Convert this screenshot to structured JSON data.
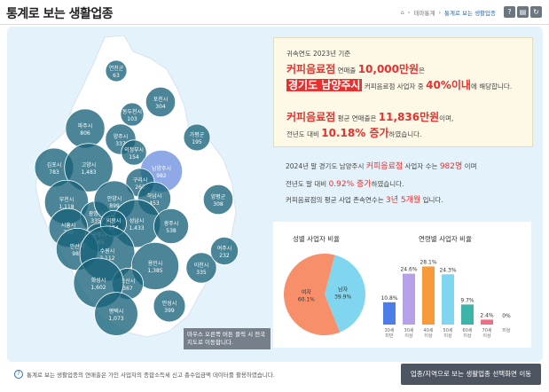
{
  "header": {
    "title": "통계로 보는 생활업종",
    "breadcrumb": [
      "테마통계",
      "통계로 보는 생활업종"
    ],
    "tools": [
      "?",
      "print",
      "refresh"
    ]
  },
  "map": {
    "hint": "마우스 오른쪽 버튼 클릭 시 전국 지도로 이동합니다.",
    "regions": [
      {
        "name": "연천군",
        "value": "63"
      },
      {
        "name": "포천시",
        "value": "304"
      },
      {
        "name": "동두천시",
        "value": "103"
      },
      {
        "name": "파주시",
        "value": "806"
      },
      {
        "name": "양주시",
        "value": "337"
      },
      {
        "name": "의정부시",
        "value": "154"
      },
      {
        "name": "가평군",
        "value": "195"
      },
      {
        "name": "김포시",
        "value": "783"
      },
      {
        "name": "고양시",
        "value": "1,483"
      },
      {
        "name": "남양주시",
        "value": "982"
      },
      {
        "name": "구리시",
        "value": "263"
      },
      {
        "name": "하남시",
        "value": "453"
      },
      {
        "name": "부천시",
        "value": "1,118"
      },
      {
        "name": "광명시",
        "value": "335"
      },
      {
        "name": "안양시",
        "value": "899"
      },
      {
        "name": "과천시",
        "value": "79"
      },
      {
        "name": "성남시",
        "value": "1,433"
      },
      {
        "name": "광주시",
        "value": "538"
      },
      {
        "name": "양평군",
        "value": "308"
      },
      {
        "name": "시흥시",
        "value": "770"
      },
      {
        "name": "군포시",
        "value": "265"
      },
      {
        "name": "의왕시",
        "value": "174"
      },
      {
        "name": "안산시",
        "value": "981"
      },
      {
        "name": "수원시",
        "value": "2,112"
      },
      {
        "name": "용인시",
        "value": "1,385"
      },
      {
        "name": "이천시",
        "value": "335"
      },
      {
        "name": "여주시",
        "value": "232"
      },
      {
        "name": "오산시",
        "value": "367"
      },
      {
        "name": "화성시",
        "value": "1,602"
      },
      {
        "name": "평택시",
        "value": "1,073"
      },
      {
        "name": "안성시",
        "value": "399"
      }
    ]
  },
  "summary": {
    "base_year": "귀속연도 2023년 기준",
    "biz": "커피음료점",
    "avg_sales_label": "연매출",
    "avg_sales": "10,000만원",
    "eun": "은",
    "region": "경기도 남양주시",
    "region_suffix": "커피음료점 사업자 중",
    "top_pct": "40%이내",
    "top_suffix": "에 해당합니다.",
    "avg2_label": "평균 연매출은",
    "avg2": "11,836만원",
    "avg2_suffix": "이며,",
    "yoy_prefix": "전년도 대비",
    "yoy": "10.18% 증가",
    "yoy_suffix": "하였습니다."
  },
  "stats": {
    "l1a": "2024년 말 경기도 남양주시",
    "l1b": "커피음료점",
    "l1c": "사업자 수는",
    "l1d": "982명",
    "l1e": "이며",
    "l2a": "전년도 말 대비",
    "l2b": "0.92% 증가",
    "l2c": "하였습니다.",
    "l3a": "커피음료점의 평균 사업 존속연수는",
    "l3b": "3년 5개월",
    "l3c": "입니다."
  },
  "charts": {
    "gender_title": "성별 사업자 비율",
    "age_title": "연령별 사업자 비율"
  },
  "chart_data": [
    {
      "type": "pie",
      "title": "성별 사업자 비율",
      "categories": [
        "남자",
        "여자"
      ],
      "values": [
        39.9,
        60.1
      ],
      "colors": [
        "#7fd6ee",
        "#f7906a"
      ]
    },
    {
      "type": "bar",
      "title": "연령별 사업자 비율",
      "categories": [
        "30세 미만",
        "30세 이상",
        "40세 이상",
        "50세 이상",
        "60세 이상",
        "70세 이상"
      ],
      "values": [
        10.8,
        24.6,
        28.1,
        24.3,
        9.7,
        2.4
      ],
      "extra_label": "0%",
      "extra_category": "미상",
      "colors": [
        "#4d7de6",
        "#b6a0e8",
        "#f79a3a",
        "#7fd6ee",
        "#3cb4a8",
        "#ef6f86"
      ]
    }
  ],
  "footer": {
    "note": "통계로 보는 생활업종의 연매출은 가인 사업자의 종합소득세 신고 총수입금액 데이터를 활용하였습니다.",
    "move_button": "업종/지역으로 보는 생활업종 선택화면 이동"
  }
}
